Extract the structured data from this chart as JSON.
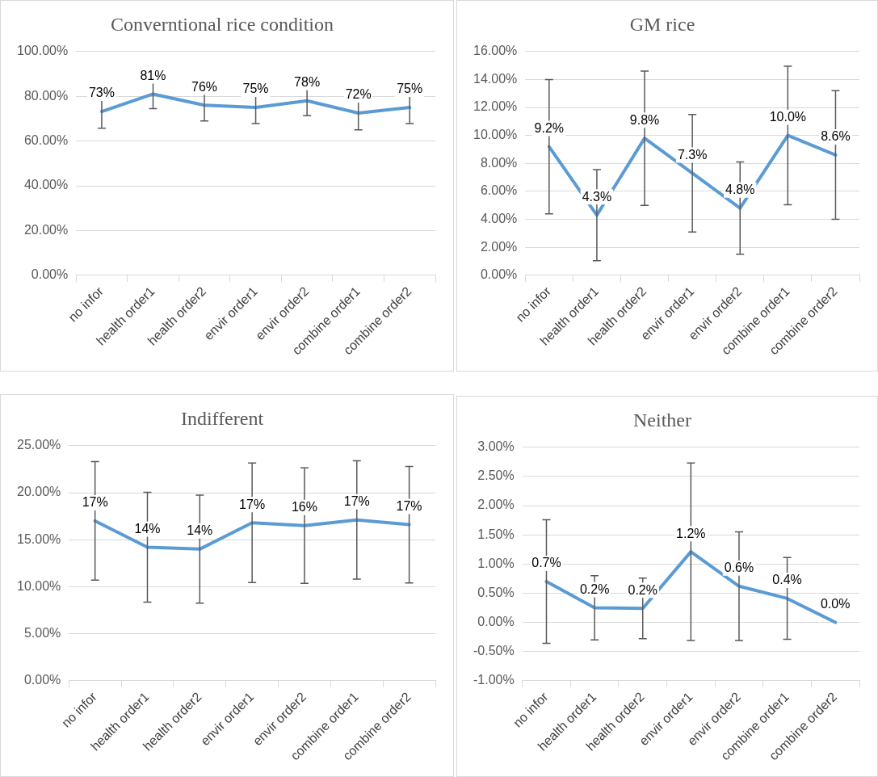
{
  "chart_data": [
    {
      "type": "line",
      "title": "Converntional rice condition",
      "categories": [
        "no infor",
        "health order1",
        "health order2",
        "envir order1",
        "envir order2",
        "combine order1",
        "combine order2"
      ],
      "series": [
        {
          "color": "#5b9bd5",
          "values": [
            73.2,
            81.0,
            76.0,
            75.0,
            78.0,
            72.5,
            75.0
          ],
          "errors": [
            7.5,
            6.5,
            7,
            7.2,
            6.7,
            7.5,
            7.2
          ],
          "value_labels": [
            "73%",
            "81%",
            "76%",
            "75%",
            "78%",
            "72%",
            "75%"
          ]
        }
      ],
      "ylim": [
        0,
        100
      ],
      "yticks": [
        {
          "value": 0,
          "label": "0.00%"
        },
        {
          "value": 20,
          "label": "20.00%"
        },
        {
          "value": 40,
          "label": "40.00%"
        },
        {
          "value": 60,
          "label": "60.00%"
        },
        {
          "value": 80,
          "label": "80.00%"
        },
        {
          "value": 100,
          "label": "100.00%"
        }
      ],
      "grid": "y",
      "marker": "none"
    },
    {
      "type": "line",
      "title": "GM rice",
      "categories": [
        "no infor",
        "health order1",
        "health order2",
        "envir order1",
        "envir order2",
        "combine order1",
        "combine order2"
      ],
      "series": [
        {
          "color": "#5b9bd5",
          "values": [
            9.2,
            4.3,
            9.8,
            7.3,
            4.8,
            10.0,
            8.6
          ],
          "errors": [
            4.8,
            3.25,
            4.8,
            4.2,
            3.3,
            4.95,
            4.6
          ],
          "value_labels": [
            "9.2%",
            "4.3%",
            "9.8%",
            "7.3%",
            "4.8%",
            "10.0%",
            "8.6%"
          ]
        }
      ],
      "ylim": [
        0,
        16
      ],
      "yticks": [
        {
          "value": 0,
          "label": "0.00%"
        },
        {
          "value": 2,
          "label": "2.00%"
        },
        {
          "value": 4,
          "label": "4.00%"
        },
        {
          "value": 6,
          "label": "6.00%"
        },
        {
          "value": 8,
          "label": "8.00%"
        },
        {
          "value": 10,
          "label": "10.00%"
        },
        {
          "value": 12,
          "label": "12.00%"
        },
        {
          "value": 14,
          "label": "14.00%"
        },
        {
          "value": 16,
          "label": "16.00%"
        }
      ],
      "grid": "y",
      "marker": "none"
    },
    {
      "type": "line",
      "title": "Indifferent",
      "categories": [
        "no infor",
        "health order1",
        "health order2",
        "envir order1",
        "envir order2",
        "combine order1",
        "combine order2"
      ],
      "series": [
        {
          "color": "#5b9bd5",
          "values": [
            17.0,
            14.2,
            14.0,
            16.8,
            16.5,
            17.1,
            16.6
          ],
          "errors": [
            6.3,
            5.85,
            5.75,
            6.35,
            6.15,
            6.3,
            6.2
          ],
          "value_labels": [
            "17%",
            "14%",
            "14%",
            "17%",
            "16%",
            "17%",
            "17%"
          ]
        }
      ],
      "ylim": [
        0,
        25
      ],
      "yticks": [
        {
          "value": 0,
          "label": "0.00%"
        },
        {
          "value": 5,
          "label": "5.00%"
        },
        {
          "value": 10,
          "label": "10.00%"
        },
        {
          "value": 15,
          "label": "15.00%"
        },
        {
          "value": 20,
          "label": "20.00%"
        },
        {
          "value": 25,
          "label": "25.00%"
        }
      ],
      "grid": "y",
      "marker": "none"
    },
    {
      "type": "line",
      "title": "Neither",
      "categories": [
        "no infor",
        "health order1",
        "health order2",
        "envir order1",
        "envir order2",
        "combine order1",
        "combine order2"
      ],
      "series": [
        {
          "color": "#5b9bd5",
          "values": [
            0.7,
            0.25,
            0.24,
            1.21,
            0.62,
            0.41,
            0.0
          ],
          "errors": [
            1.06,
            0.55,
            0.52,
            1.52,
            0.93,
            0.7,
            null
          ],
          "value_labels": [
            "0.7%",
            "0.2%",
            "0.2%",
            "1.2%",
            "0.6%",
            "0.4%",
            "0.0%"
          ]
        }
      ],
      "ylim": [
        -1,
        3
      ],
      "yticks": [
        {
          "value": -1,
          "label": "-1.00%"
        },
        {
          "value": -0.5,
          "label": "-0.50%"
        },
        {
          "value": 0,
          "label": "0.00%"
        },
        {
          "value": 0.5,
          "label": "0.50%"
        },
        {
          "value": 1,
          "label": "1.00%"
        },
        {
          "value": 1.5,
          "label": "1.50%"
        },
        {
          "value": 2,
          "label": "2.00%"
        },
        {
          "value": 2.5,
          "label": "2.50%"
        },
        {
          "value": 3,
          "label": "3.00%"
        }
      ],
      "grid": "y",
      "marker": "none"
    }
  ]
}
